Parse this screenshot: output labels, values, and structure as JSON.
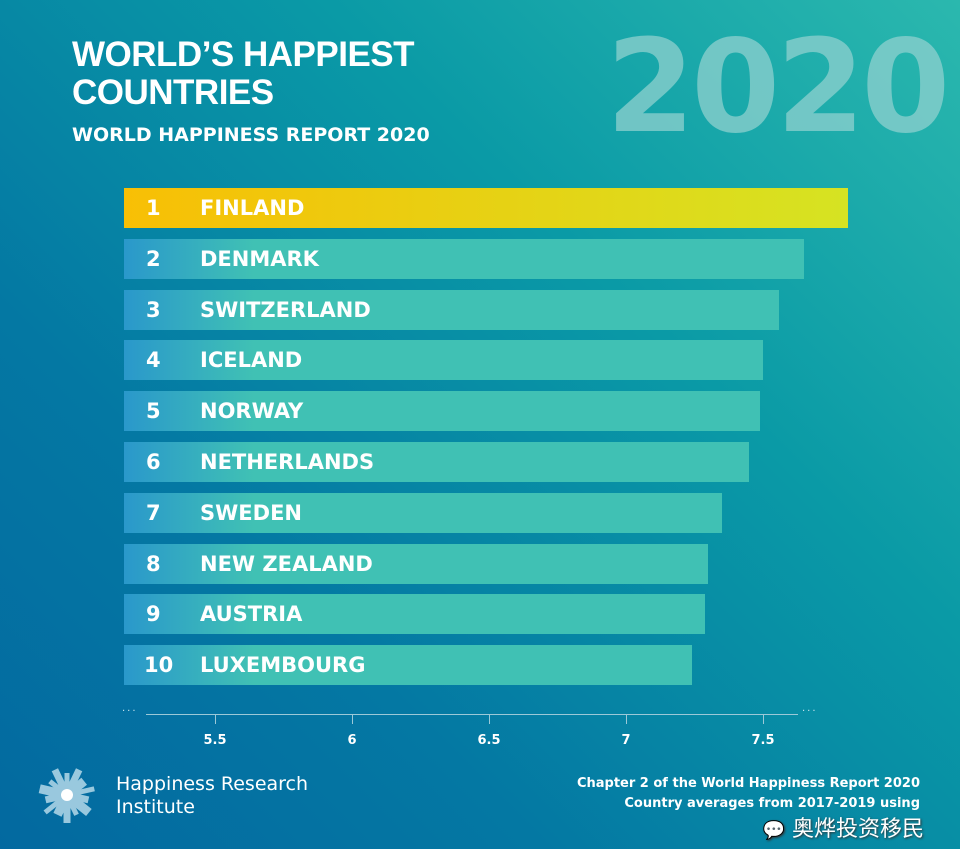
{
  "header": {
    "title": "WORLD’S HAPPIEST COUNTRIES",
    "subtitle": "WORLD HAPPINESS REPORT 2020",
    "year": "2020"
  },
  "chart_data": {
    "type": "bar",
    "orientation": "horizontal",
    "ranks": [
      "1",
      "2",
      "3",
      "4",
      "5",
      "6",
      "7",
      "8",
      "9",
      "10"
    ],
    "categories": [
      "FINLAND",
      "DENMARK",
      "SWITZERLAND",
      "ICELAND",
      "NORWAY",
      "NETHERLANDS",
      "SWEDEN",
      "NEW ZEALAND",
      "AUSTRIA",
      "LUXEMBOURG"
    ],
    "values": [
      7.81,
      7.65,
      7.56,
      7.5,
      7.49,
      7.45,
      7.35,
      7.3,
      7.29,
      7.24
    ],
    "xticks": [
      "5.5",
      "6",
      "6.5",
      "7",
      "7.5"
    ],
    "xlim": [
      5.17,
      7.85
    ],
    "grid": false,
    "colors": {
      "highlight_start": "#f8bf05",
      "highlight_end": "#d6e322",
      "bar_start": "#2a98cb",
      "bar_end": "#40c1b4"
    }
  },
  "footer": {
    "org": [
      "Happiness Research",
      "Institute"
    ],
    "source_line1": "Chapter 2 of the World Happiness Report 2020",
    "source_line2": "Country averages from 2017-2019 using",
    "watermark": "奥烨投资移民"
  }
}
